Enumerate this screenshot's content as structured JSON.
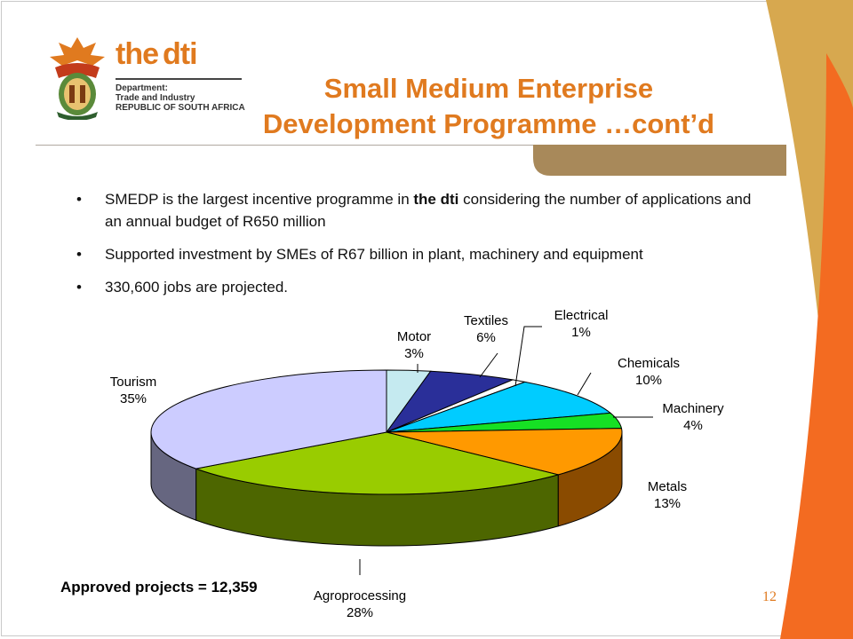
{
  "brand": {
    "the": "the",
    "dti": "dti",
    "dept_line1": "Department:",
    "dept_line2": "Trade and Industry",
    "dept_line3": "REPUBLIC OF SOUTH AFRICA",
    "crest_icon": "sa-coat-of-arms-icon"
  },
  "title": {
    "line1": "Small Medium Enterprise",
    "line2": "Development Programme …cont’d"
  },
  "bullets": [
    {
      "pre": "SMEDP is the largest incentive programme in ",
      "bold": "the dti",
      "post": " considering the number of applications and an annual budget of R650 million"
    },
    {
      "pre": "Supported investment by SMEs of R67 billion in plant, machinery and equipment",
      "bold": "",
      "post": ""
    },
    {
      "pre": "330,600 jobs are projected.",
      "bold": "",
      "post": ""
    }
  ],
  "bullet_char": "•",
  "footnote": "Approved projects = 12,359",
  "page_number": "12",
  "colors": {
    "accent": "#e07a1f",
    "stripe_tan": "#d7a84f",
    "stripe_orange": "#f36b21",
    "bar_brown": "#a8895a"
  },
  "chart_data": {
    "type": "pie",
    "style": "3d",
    "title": "",
    "slices": [
      {
        "name": "Motor",
        "value": 3,
        "label": "3%",
        "color": "#c5eaf0",
        "side": "#7fa9b0"
      },
      {
        "name": "Textiles",
        "value": 6,
        "label": "6%",
        "color": "#2a2f99",
        "side": "#161a5c"
      },
      {
        "name": "Electrical",
        "value": 1,
        "label": "1%",
        "color": "#ffffff",
        "side": "#cccccc"
      },
      {
        "name": "Chemicals",
        "value": 10,
        "label": "10%",
        "color": "#00ccff",
        "side": "#0088aa"
      },
      {
        "name": "Machinery",
        "value": 4,
        "label": "4%",
        "color": "#16e024",
        "side": "#0c8a14"
      },
      {
        "name": "Metals",
        "value": 13,
        "label": "13%",
        "color": "#ff9900",
        "side": "#8a4b00"
      },
      {
        "name": "Agroprocessing",
        "value": 28,
        "label": "28%",
        "color": "#99cc00",
        "side": "#4d6600"
      },
      {
        "name": "Tourism",
        "value": 35,
        "label": "35%",
        "color": "#ccccff",
        "side": "#666680"
      }
    ]
  }
}
